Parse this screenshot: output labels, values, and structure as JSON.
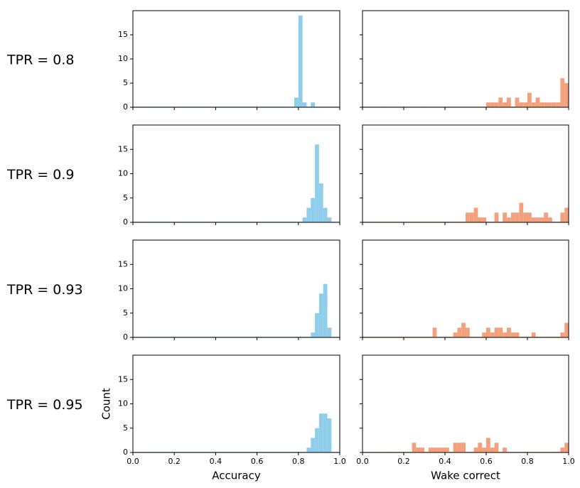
{
  "row_labels": [
    "TPR = 0.8",
    "TPR = 0.9",
    "TPR = 0.93",
    "TPR = 0.95"
  ],
  "chart_data": [
    {
      "type": "histogram",
      "color": "#8fcdea",
      "xlim": [
        0,
        1
      ],
      "ylim": [
        0,
        20
      ],
      "xticks": [
        0,
        0.2,
        0.4,
        0.6,
        0.8,
        1
      ],
      "yticks": [
        0,
        5,
        10,
        15
      ],
      "bins": [
        0,
        0.02,
        0.04,
        0.06,
        0.08,
        0.1,
        0.12,
        0.14,
        0.16,
        0.18,
        0.2,
        0.22,
        0.24,
        0.26,
        0.28,
        0.3,
        0.32,
        0.34,
        0.36,
        0.38,
        0.4,
        0.42,
        0.44,
        0.46,
        0.48,
        0.5,
        0.52,
        0.54,
        0.56,
        0.58,
        0.6,
        0.62,
        0.64,
        0.66,
        0.68,
        0.7,
        0.72,
        0.74,
        0.76,
        0.78,
        0.8,
        0.82,
        0.84,
        0.86,
        0.88,
        0.9,
        0.92,
        0.94,
        0.96,
        0.98,
        1
      ],
      "counts": [
        0,
        0,
        0,
        0,
        0,
        0,
        0,
        0,
        0,
        0,
        0,
        0,
        0,
        0,
        0,
        0,
        0,
        0,
        0,
        0,
        0,
        0,
        0,
        0,
        0,
        0,
        0,
        0,
        0,
        0,
        0,
        0,
        0,
        0,
        0,
        0,
        0,
        0,
        0,
        2,
        19,
        1,
        0,
        1,
        0,
        0,
        0,
        0,
        0,
        0
      ]
    },
    {
      "type": "histogram",
      "color": "#f3a07c",
      "xlim": [
        0,
        1
      ],
      "ylim": [
        0,
        20
      ],
      "xticks": [
        0,
        0.2,
        0.4,
        0.6,
        0.8,
        1
      ],
      "yticks": [
        0,
        5,
        10,
        15
      ],
      "bins": [
        0,
        0.02,
        0.04,
        0.06,
        0.08,
        0.1,
        0.12,
        0.14,
        0.16,
        0.18,
        0.2,
        0.22,
        0.24,
        0.26,
        0.28,
        0.3,
        0.32,
        0.34,
        0.36,
        0.38,
        0.4,
        0.42,
        0.44,
        0.46,
        0.48,
        0.5,
        0.52,
        0.54,
        0.56,
        0.58,
        0.6,
        0.62,
        0.64,
        0.66,
        0.68,
        0.7,
        0.72,
        0.74,
        0.76,
        0.78,
        0.8,
        0.82,
        0.84,
        0.86,
        0.88,
        0.9,
        0.92,
        0.94,
        0.96,
        0.98,
        1
      ],
      "counts": [
        0,
        0,
        0,
        0,
        0,
        0,
        0,
        0,
        0,
        0,
        0,
        0,
        0,
        0,
        0,
        0,
        0,
        0,
        0,
        0,
        0,
        0,
        0,
        0,
        0,
        0,
        0,
        0,
        0,
        0,
        1,
        1,
        1,
        2,
        1,
        2,
        0,
        2,
        1,
        1,
        3,
        1,
        2,
        1,
        1,
        1,
        1,
        1,
        6,
        5
      ]
    },
    {
      "type": "histogram",
      "color": "#8fcdea",
      "xlim": [
        0,
        1
      ],
      "ylim": [
        0,
        20
      ],
      "xticks": [
        0,
        0.2,
        0.4,
        0.6,
        0.8,
        1
      ],
      "yticks": [
        0,
        5,
        10,
        15
      ],
      "bins": [
        0,
        0.02,
        0.04,
        0.06,
        0.08,
        0.1,
        0.12,
        0.14,
        0.16,
        0.18,
        0.2,
        0.22,
        0.24,
        0.26,
        0.28,
        0.3,
        0.32,
        0.34,
        0.36,
        0.38,
        0.4,
        0.42,
        0.44,
        0.46,
        0.48,
        0.5,
        0.52,
        0.54,
        0.56,
        0.58,
        0.6,
        0.62,
        0.64,
        0.66,
        0.68,
        0.7,
        0.72,
        0.74,
        0.76,
        0.78,
        0.8,
        0.82,
        0.84,
        0.86,
        0.88,
        0.9,
        0.92,
        0.94,
        0.96,
        0.98,
        1
      ],
      "counts": [
        0,
        0,
        0,
        0,
        0,
        0,
        0,
        0,
        0,
        0,
        0,
        0,
        0,
        0,
        0,
        0,
        0,
        0,
        0,
        0,
        0,
        0,
        0,
        0,
        0,
        0,
        0,
        0,
        0,
        0,
        0,
        0,
        0,
        0,
        0,
        0,
        0,
        0,
        0,
        0,
        0,
        1,
        3,
        5,
        16,
        8,
        3,
        1,
        0,
        0
      ]
    },
    {
      "type": "histogram",
      "color": "#f3a07c",
      "xlim": [
        0,
        1
      ],
      "ylim": [
        0,
        20
      ],
      "xticks": [
        0,
        0.2,
        0.4,
        0.6,
        0.8,
        1
      ],
      "yticks": [
        0,
        5,
        10,
        15
      ],
      "bins": [
        0,
        0.02,
        0.04,
        0.06,
        0.08,
        0.1,
        0.12,
        0.14,
        0.16,
        0.18,
        0.2,
        0.22,
        0.24,
        0.26,
        0.28,
        0.3,
        0.32,
        0.34,
        0.36,
        0.38,
        0.4,
        0.42,
        0.44,
        0.46,
        0.48,
        0.5,
        0.52,
        0.54,
        0.56,
        0.58,
        0.6,
        0.62,
        0.64,
        0.66,
        0.68,
        0.7,
        0.72,
        0.74,
        0.76,
        0.78,
        0.8,
        0.82,
        0.84,
        0.86,
        0.88,
        0.9,
        0.92,
        0.94,
        0.96,
        0.98,
        1
      ],
      "counts": [
        0,
        0,
        0,
        0,
        0,
        0,
        0,
        0,
        0,
        0,
        0,
        0,
        0,
        0,
        0,
        0,
        0,
        0,
        0,
        0,
        0,
        0,
        0,
        0,
        0,
        2,
        2,
        3,
        1,
        1,
        0,
        0,
        2,
        0,
        2,
        1,
        2,
        2,
        4,
        2,
        2,
        1,
        1,
        1,
        2,
        1,
        0,
        0,
        2,
        3
      ]
    },
    {
      "type": "histogram",
      "color": "#8fcdea",
      "xlim": [
        0,
        1
      ],
      "ylim": [
        0,
        20
      ],
      "xticks": [
        0,
        0.2,
        0.4,
        0.6,
        0.8,
        1
      ],
      "yticks": [
        0,
        5,
        10,
        15
      ],
      "bins": [
        0,
        0.02,
        0.04,
        0.06,
        0.08,
        0.1,
        0.12,
        0.14,
        0.16,
        0.18,
        0.2,
        0.22,
        0.24,
        0.26,
        0.28,
        0.3,
        0.32,
        0.34,
        0.36,
        0.38,
        0.4,
        0.42,
        0.44,
        0.46,
        0.48,
        0.5,
        0.52,
        0.54,
        0.56,
        0.58,
        0.6,
        0.62,
        0.64,
        0.66,
        0.68,
        0.7,
        0.72,
        0.74,
        0.76,
        0.78,
        0.8,
        0.82,
        0.84,
        0.86,
        0.88,
        0.9,
        0.92,
        0.94,
        0.96,
        0.98,
        1
      ],
      "counts": [
        0,
        0,
        0,
        0,
        0,
        0,
        0,
        0,
        0,
        0,
        0,
        0,
        0,
        0,
        0,
        0,
        0,
        0,
        0,
        0,
        0,
        0,
        0,
        0,
        0,
        0,
        0,
        0,
        0,
        0,
        0,
        0,
        0,
        0,
        0,
        0,
        0,
        0,
        0,
        0,
        0,
        0,
        0,
        1,
        5,
        9,
        11,
        2,
        0,
        0
      ]
    },
    {
      "type": "histogram",
      "color": "#f3a07c",
      "xlim": [
        0,
        1
      ],
      "ylim": [
        0,
        20
      ],
      "xticks": [
        0,
        0.2,
        0.4,
        0.6,
        0.8,
        1
      ],
      "yticks": [
        0,
        5,
        10,
        15
      ],
      "bins": [
        0,
        0.02,
        0.04,
        0.06,
        0.08,
        0.1,
        0.12,
        0.14,
        0.16,
        0.18,
        0.2,
        0.22,
        0.24,
        0.26,
        0.28,
        0.3,
        0.32,
        0.34,
        0.36,
        0.38,
        0.4,
        0.42,
        0.44,
        0.46,
        0.48,
        0.5,
        0.52,
        0.54,
        0.56,
        0.58,
        0.6,
        0.62,
        0.64,
        0.66,
        0.68,
        0.7,
        0.72,
        0.74,
        0.76,
        0.78,
        0.8,
        0.82,
        0.84,
        0.86,
        0.88,
        0.9,
        0.92,
        0.94,
        0.96,
        0.98,
        1
      ],
      "counts": [
        0,
        0,
        0,
        0,
        0,
        0,
        0,
        0,
        0,
        0,
        0,
        0,
        0,
        0,
        0,
        0,
        0,
        2,
        0,
        0,
        0,
        0,
        1,
        2,
        3,
        2,
        0,
        0,
        0,
        1,
        2,
        1,
        2,
        2,
        1,
        2,
        1,
        1,
        0,
        0,
        0,
        1,
        0,
        0,
        0,
        0,
        0,
        0,
        1,
        3
      ]
    },
    {
      "type": "histogram",
      "color": "#8fcdea",
      "xlim": [
        0,
        1
      ],
      "ylim": [
        0,
        20
      ],
      "xticks": [
        {
          "value": 0,
          "label": "0.0"
        },
        0.2,
        0.4,
        0.6,
        0.8,
        {
          "value": 1,
          "label": "1.0"
        }
      ],
      "yticks": [
        0,
        5,
        10,
        15
      ],
      "xlabel": "Accuracy",
      "ylabel": "Count",
      "bins": [
        0,
        0.02,
        0.04,
        0.06,
        0.08,
        0.1,
        0.12,
        0.14,
        0.16,
        0.18,
        0.2,
        0.22,
        0.24,
        0.26,
        0.28,
        0.3,
        0.32,
        0.34,
        0.36,
        0.38,
        0.4,
        0.42,
        0.44,
        0.46,
        0.48,
        0.5,
        0.52,
        0.54,
        0.56,
        0.58,
        0.6,
        0.62,
        0.64,
        0.66,
        0.68,
        0.7,
        0.72,
        0.74,
        0.76,
        0.78,
        0.8,
        0.82,
        0.84,
        0.86,
        0.88,
        0.9,
        0.92,
        0.94,
        0.96,
        0.98,
        1
      ],
      "counts": [
        0,
        0,
        0,
        0,
        0,
        0,
        0,
        0,
        0,
        0,
        0,
        0,
        0,
        0,
        0,
        0,
        0,
        0,
        0,
        0,
        0,
        0,
        0,
        0,
        0,
        0,
        0,
        0,
        0,
        0,
        0,
        0,
        0,
        0,
        0,
        0,
        0,
        0,
        0,
        0,
        0,
        0,
        1,
        3,
        5,
        8,
        8,
        7,
        0,
        0
      ]
    },
    {
      "type": "histogram",
      "color": "#f3a07c",
      "xlim": [
        0,
        1
      ],
      "ylim": [
        0,
        20
      ],
      "xticks": [
        {
          "value": 0,
          "label": "0.0"
        },
        0.2,
        0.4,
        0.6,
        0.8,
        {
          "value": 1,
          "label": "1.0"
        }
      ],
      "yticks": [
        0,
        5,
        10,
        15
      ],
      "xlabel": "Wake correct",
      "bins": [
        0,
        0.02,
        0.04,
        0.06,
        0.08,
        0.1,
        0.12,
        0.14,
        0.16,
        0.18,
        0.2,
        0.22,
        0.24,
        0.26,
        0.28,
        0.3,
        0.32,
        0.34,
        0.36,
        0.38,
        0.4,
        0.42,
        0.44,
        0.46,
        0.48,
        0.5,
        0.52,
        0.54,
        0.56,
        0.58,
        0.6,
        0.62,
        0.64,
        0.66,
        0.68,
        0.7,
        0.72,
        0.74,
        0.76,
        0.78,
        0.8,
        0.82,
        0.84,
        0.86,
        0.88,
        0.9,
        0.92,
        0.94,
        0.96,
        0.98,
        1
      ],
      "counts": [
        0,
        0,
        0,
        0,
        0,
        0,
        0,
        0,
        0,
        0,
        0,
        0,
        2,
        1,
        1,
        0,
        1,
        1,
        1,
        1,
        1,
        0,
        2,
        2,
        2,
        0,
        0,
        1,
        2,
        1,
        3,
        1,
        2,
        0,
        1,
        0,
        0,
        0,
        0,
        0,
        0,
        0,
        0,
        0,
        0,
        0,
        0,
        0,
        1,
        2
      ]
    }
  ]
}
